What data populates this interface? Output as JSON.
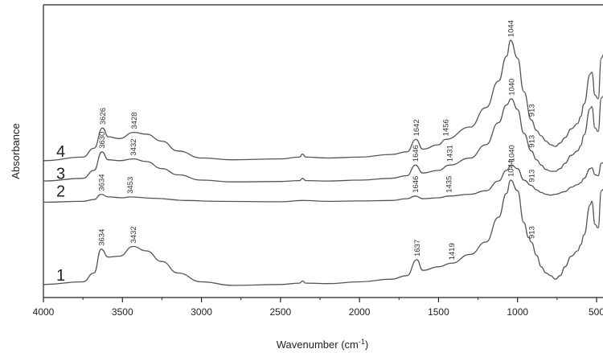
{
  "chart_data": {
    "type": "line",
    "title": "",
    "xlabel": "Wavenumber (cm",
    "xlabel_sup": "-1",
    "xlabel_end": ")",
    "ylabel": "Absorbance",
    "xlim": [
      4000,
      500
    ],
    "x_reversed": true,
    "xticks": [
      4000,
      3500,
      3000,
      2500,
      2000,
      1500,
      1000,
      500
    ],
    "xtick_labels": [
      "4000",
      "3500",
      "3000",
      "2500",
      "2000",
      "1500",
      "1000",
      "500"
    ],
    "y_ticks_shown": false,
    "grid": false,
    "legend": "none",
    "series": [
      {
        "name": "1",
        "offset": 0.0,
        "shape": [
          [
            4000,
            0.02
          ],
          [
            3750,
            0.05
          ],
          [
            3680,
            0.15
          ],
          [
            3634,
            0.42
          ],
          [
            3590,
            0.33
          ],
          [
            3520,
            0.34
          ],
          [
            3432,
            0.45
          ],
          [
            3350,
            0.4
          ],
          [
            3250,
            0.28
          ],
          [
            3150,
            0.15
          ],
          [
            3000,
            0.05
          ],
          [
            2800,
            0.01
          ],
          [
            2500,
            0.02
          ],
          [
            2380,
            0.035
          ],
          [
            2360,
            0.06
          ],
          [
            2340,
            0.035
          ],
          [
            2200,
            0.03
          ],
          [
            2000,
            0.05
          ],
          [
            1800,
            0.08
          ],
          [
            1700,
            0.12
          ],
          [
            1637,
            0.3
          ],
          [
            1600,
            0.18
          ],
          [
            1500,
            0.22
          ],
          [
            1419,
            0.26
          ],
          [
            1300,
            0.36
          ],
          [
            1200,
            0.5
          ],
          [
            1120,
            0.78
          ],
          [
            1070,
            1.05
          ],
          [
            1044,
            1.2
          ],
          [
            1000,
            1.08
          ],
          [
            960,
            0.72
          ],
          [
            930,
            0.55
          ],
          [
            913,
            0.5
          ],
          [
            880,
            0.35
          ],
          [
            850,
            0.22
          ],
          [
            820,
            0.15
          ],
          [
            790,
            0.12
          ],
          [
            760,
            0.08
          ],
          [
            730,
            0.12
          ],
          [
            700,
            0.22
          ],
          [
            660,
            0.34
          ],
          [
            620,
            0.4
          ],
          [
            600,
            0.47
          ],
          [
            580,
            0.58
          ],
          [
            540,
            0.92
          ],
          [
            530,
            0.96
          ],
          [
            510,
            0.7
          ],
          [
            490,
            0.66
          ],
          [
            470,
            1.08
          ],
          [
            455,
            1.1
          ]
        ]
      },
      {
        "name": "2",
        "offset": 0.95,
        "shape": [
          [
            4000,
            0.0
          ],
          [
            3750,
            0.01
          ],
          [
            3680,
            0.03
          ],
          [
            3634,
            0.09
          ],
          [
            3590,
            0.06
          ],
          [
            3500,
            0.05
          ],
          [
            3453,
            0.06
          ],
          [
            3300,
            0.045
          ],
          [
            3100,
            0.02
          ],
          [
            2900,
            0.01
          ],
          [
            2500,
            0.005
          ],
          [
            2360,
            0.02
          ],
          [
            2200,
            0.01
          ],
          [
            2000,
            0.015
          ],
          [
            1800,
            0.02
          ],
          [
            1700,
            0.04
          ],
          [
            1646,
            0.07
          ],
          [
            1600,
            0.04
          ],
          [
            1500,
            0.05
          ],
          [
            1435,
            0.07
          ],
          [
            1300,
            0.09
          ],
          [
            1200,
            0.13
          ],
          [
            1120,
            0.24
          ],
          [
            1070,
            0.36
          ],
          [
            1040,
            0.42
          ],
          [
            1000,
            0.38
          ],
          [
            960,
            0.25
          ],
          [
            913,
            0.19
          ],
          [
            880,
            0.14
          ],
          [
            850,
            0.11
          ],
          [
            820,
            0.09
          ],
          [
            790,
            0.08
          ],
          [
            760,
            0.09
          ],
          [
            700,
            0.12
          ],
          [
            660,
            0.17
          ],
          [
            620,
            0.2
          ],
          [
            600,
            0.22
          ],
          [
            580,
            0.27
          ],
          [
            540,
            0.38
          ],
          [
            530,
            0.39
          ],
          [
            510,
            0.31
          ],
          [
            490,
            0.3
          ],
          [
            470,
            0.44
          ],
          [
            455,
            0.45
          ]
        ]
      },
      {
        "name": "3",
        "offset": 1.15,
        "shape": [
          [
            4000,
            0.04
          ],
          [
            3750,
            0.07
          ],
          [
            3680,
            0.16
          ],
          [
            3630,
            0.37
          ],
          [
            3590,
            0.28
          ],
          [
            3520,
            0.27
          ],
          [
            3432,
            0.29
          ],
          [
            3350,
            0.26
          ],
          [
            3250,
            0.18
          ],
          [
            3150,
            0.11
          ],
          [
            3000,
            0.05
          ],
          [
            2800,
            0.03
          ],
          [
            2500,
            0.035
          ],
          [
            2380,
            0.045
          ],
          [
            2360,
            0.07
          ],
          [
            2340,
            0.045
          ],
          [
            2200,
            0.04
          ],
          [
            2000,
            0.05
          ],
          [
            1800,
            0.07
          ],
          [
            1700,
            0.1
          ],
          [
            1646,
            0.22
          ],
          [
            1600,
            0.13
          ],
          [
            1500,
            0.16
          ],
          [
            1431,
            0.22
          ],
          [
            1300,
            0.3
          ],
          [
            1200,
            0.45
          ],
          [
            1120,
            0.7
          ],
          [
            1070,
            0.9
          ],
          [
            1040,
            0.97
          ],
          [
            1000,
            0.85
          ],
          [
            960,
            0.58
          ],
          [
            913,
            0.38
          ],
          [
            880,
            0.28
          ],
          [
            850,
            0.22
          ],
          [
            820,
            0.17
          ],
          [
            790,
            0.15
          ],
          [
            760,
            0.15
          ],
          [
            730,
            0.18
          ],
          [
            700,
            0.24
          ],
          [
            660,
            0.33
          ],
          [
            620,
            0.38
          ],
          [
            600,
            0.44
          ],
          [
            580,
            0.56
          ],
          [
            540,
            0.86
          ],
          [
            530,
            0.88
          ],
          [
            510,
            0.64
          ],
          [
            490,
            0.6
          ],
          [
            470,
            0.98
          ],
          [
            455,
            1.0
          ]
        ]
      },
      {
        "name": "4",
        "offset": 1.4,
        "shape": [
          [
            4000,
            0.02
          ],
          [
            3750,
            0.06
          ],
          [
            3680,
            0.16
          ],
          [
            3626,
            0.39
          ],
          [
            3590,
            0.29
          ],
          [
            3520,
            0.27
          ],
          [
            3428,
            0.34
          ],
          [
            3350,
            0.32
          ],
          [
            3250,
            0.24
          ],
          [
            3150,
            0.13
          ],
          [
            3000,
            0.05
          ],
          [
            2800,
            0.03
          ],
          [
            2500,
            0.04
          ],
          [
            2380,
            0.06
          ],
          [
            2360,
            0.095
          ],
          [
            2340,
            0.06
          ],
          [
            2200,
            0.05
          ],
          [
            2000,
            0.06
          ],
          [
            1800,
            0.09
          ],
          [
            1700,
            0.12
          ],
          [
            1642,
            0.26
          ],
          [
            1600,
            0.15
          ],
          [
            1500,
            0.2
          ],
          [
            1456,
            0.26
          ],
          [
            1300,
            0.4
          ],
          [
            1200,
            0.62
          ],
          [
            1120,
            0.92
          ],
          [
            1070,
            1.2
          ],
          [
            1044,
            1.38
          ],
          [
            1000,
            1.18
          ],
          [
            960,
            0.8
          ],
          [
            913,
            0.48
          ],
          [
            880,
            0.36
          ],
          [
            850,
            0.3
          ],
          [
            820,
            0.24
          ],
          [
            790,
            0.2
          ],
          [
            760,
            0.18
          ],
          [
            730,
            0.22
          ],
          [
            700,
            0.28
          ],
          [
            660,
            0.38
          ],
          [
            620,
            0.44
          ],
          [
            600,
            0.52
          ],
          [
            580,
            0.66
          ],
          [
            540,
            1.0
          ],
          [
            530,
            1.02
          ],
          [
            510,
            0.76
          ],
          [
            490,
            0.72
          ],
          [
            470,
            1.18
          ],
          [
            455,
            1.22
          ]
        ]
      }
    ],
    "annotations": [
      {
        "series": "1",
        "peaks": [
          "3634",
          "3432",
          "1637",
          "1419",
          "1044",
          "913"
        ]
      },
      {
        "series": "2",
        "peaks": [
          "3634",
          "3453",
          "1646",
          "1435",
          "1040",
          "913"
        ]
      },
      {
        "series": "3",
        "peaks": [
          "3630",
          "3432",
          "1646",
          "1431",
          "1040",
          "913"
        ]
      },
      {
        "series": "4",
        "peaks": [
          "3626",
          "3428",
          "1642",
          "1456",
          "1044",
          "913"
        ]
      }
    ]
  }
}
